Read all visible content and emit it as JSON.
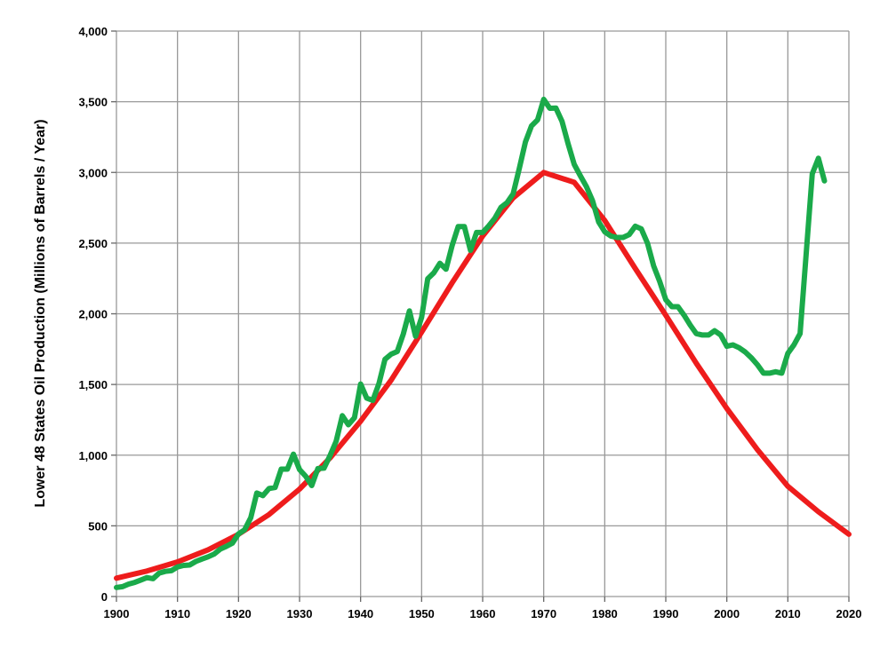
{
  "chart_data": {
    "type": "line",
    "title": "",
    "xlabel": "",
    "ylabel": "Lower 48 States Oil Production (Millions of Barrels / Year)",
    "xlim": [
      1900,
      2020
    ],
    "ylim": [
      0,
      4000
    ],
    "x_ticks": [
      "1900",
      "1910",
      "1920",
      "1930",
      "1940",
      "1950",
      "1960",
      "1970",
      "1980",
      "1990",
      "2000",
      "2010",
      "2020"
    ],
    "y_ticks": [
      "0",
      "500",
      "1,000",
      "1,500",
      "2,000",
      "2,500",
      "3,000",
      "3,500",
      "4,000"
    ],
    "grid": true,
    "legend": "none",
    "colors": {
      "model": "#ee1c1c",
      "actual": "#1aaa4a",
      "grid": "#999999"
    },
    "series": [
      {
        "key": "model",
        "x": [
          1900,
          1905,
          1910,
          1915,
          1920,
          1925,
          1930,
          1935,
          1940,
          1945,
          1950,
          1955,
          1960,
          1965,
          1970,
          1975,
          1980,
          1985,
          1990,
          1995,
          2000,
          2005,
          2010,
          2015,
          2020
        ],
        "values": [
          130,
          180,
          245,
          330,
          440,
          580,
          760,
          980,
          1240,
          1530,
          1870,
          2220,
          2550,
          2820,
          3000,
          2930,
          2660,
          2320,
          1990,
          1650,
          1330,
          1040,
          780,
          600,
          440
        ]
      },
      {
        "key": "actual",
        "x": [
          1900,
          1901,
          1902,
          1903,
          1904,
          1905,
          1906,
          1907,
          1908,
          1909,
          1910,
          1911,
          1912,
          1913,
          1914,
          1915,
          1916,
          1917,
          1918,
          1919,
          1920,
          1921,
          1922,
          1923,
          1924,
          1925,
          1926,
          1927,
          1928,
          1929,
          1930,
          1931,
          1932,
          1933,
          1934,
          1935,
          1936,
          1937,
          1938,
          1939,
          1940,
          1941,
          1942,
          1943,
          1944,
          1945,
          1946,
          1947,
          1948,
          1949,
          1950,
          1951,
          1952,
          1953,
          1954,
          1955,
          1956,
          1957,
          1958,
          1959,
          1960,
          1961,
          1962,
          1963,
          1964,
          1965,
          1966,
          1967,
          1968,
          1969,
          1970,
          1971,
          1972,
          1973,
          1974,
          1975,
          1976,
          1977,
          1978,
          1979,
          1980,
          1981,
          1982,
          1983,
          1984,
          1985,
          1986,
          1987,
          1988,
          1989,
          1990,
          1991,
          1992,
          1993,
          1994,
          1995,
          1996,
          1997,
          1998,
          1999,
          2000,
          2001,
          2002,
          2003,
          2004,
          2005,
          2006,
          2007,
          2008,
          2009,
          2010,
          2011,
          2012,
          2013,
          2014,
          2015,
          2016
        ],
        "values": [
          64,
          70,
          88,
          100,
          117,
          134,
          126,
          166,
          178,
          183,
          209,
          220,
          223,
          248,
          265,
          281,
          300,
          335,
          355,
          378,
          443,
          472,
          557,
          732,
          714,
          764,
          771,
          901,
          901,
          1007,
          898,
          851,
          785,
          905,
          908,
          997,
          1099,
          1279,
          1215,
          1265,
          1503,
          1404,
          1387,
          1506,
          1678,
          1714,
          1733,
          1857,
          2020,
          1841,
          1974,
          2248,
          2290,
          2357,
          2315,
          2484,
          2617,
          2617,
          2449,
          2575,
          2575,
          2622,
          2676,
          2753,
          2787,
          2849,
          3028,
          3216,
          3329,
          3372,
          3517,
          3454,
          3455,
          3361,
          3203,
          3057,
          2976,
          2900,
          2800,
          2650,
          2580,
          2550,
          2540,
          2540,
          2560,
          2620,
          2600,
          2500,
          2340,
          2230,
          2100,
          2050,
          2050,
          1990,
          1920,
          1860,
          1850,
          1850,
          1880,
          1850,
          1770,
          1780,
          1760,
          1730,
          1690,
          1640,
          1580,
          1580,
          1590,
          1580,
          1720,
          1780,
          1860,
          2420,
          2990,
          3100,
          2940
        ]
      }
    ]
  }
}
